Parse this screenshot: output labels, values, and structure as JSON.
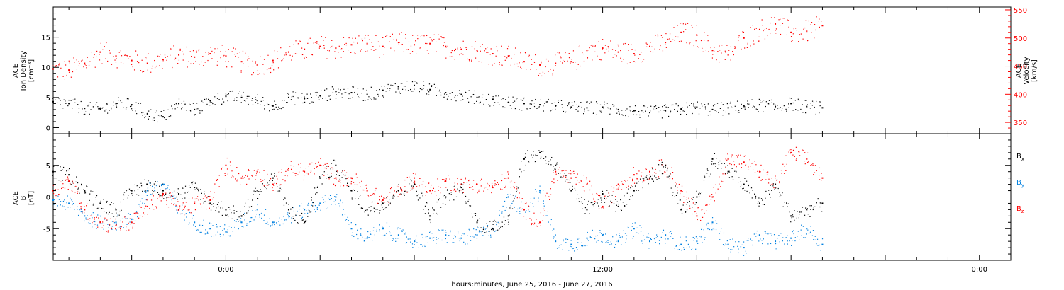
{
  "colors": {
    "frame": "#000000",
    "density": "#000000",
    "velocity": "#ff0000",
    "bx": "#000000",
    "by": "#0080e0",
    "bz": "#ff0000"
  },
  "x_axis": {
    "label": "hours:minutes, June 25, 2016 - June 27, 2016",
    "tick_labels": [
      "0:00",
      "12:00",
      "0:00"
    ],
    "tick_hours": [
      0,
      12,
      24
    ],
    "range_hours": [
      -5.5,
      25
    ]
  },
  "chart_data": [
    {
      "type": "scatter",
      "panel": "top",
      "ylabel_lines": [
        "ACE",
        "Ion Density",
        "[cm⁻³]"
      ],
      "ylim": [
        -1,
        20
      ],
      "yticks": [
        "0",
        "5",
        "10",
        "15"
      ],
      "right_axis": {
        "ylabel_lines": [
          "ACE",
          "Velocity",
          "[km/s]"
        ],
        "ylim": [
          330,
          555
        ],
        "yticks": [
          "350",
          "400",
          "450",
          "500",
          "550"
        ]
      },
      "series": [
        {
          "key": "density",
          "axis": "left",
          "x_hours": [
            -5.5,
            -5.0,
            -4.5,
            -4.0,
            -3.5,
            -3.0,
            -2.5,
            -2.0,
            -1.5,
            -1.0,
            -0.5,
            0.0,
            0.5,
            1.0,
            1.5,
            2.0,
            2.5,
            3.0,
            3.5,
            4.0,
            4.5,
            5.0,
            5.5,
            6.0,
            6.5,
            7.0,
            7.5,
            8.0,
            8.5,
            9.0,
            9.5,
            10.0,
            10.5,
            11.0,
            11.5,
            12.0,
            12.5,
            13.0,
            13.5,
            14.0,
            14.5,
            15.0,
            15.5,
            16.0,
            16.5,
            17.0,
            17.5,
            18.0,
            18.5,
            19.0
          ],
          "values": [
            4.3,
            4.0,
            3.2,
            3.1,
            4.0,
            3.8,
            2.3,
            1.8,
            4.0,
            3.0,
            4.5,
            5.2,
            5.0,
            4.5,
            3.6,
            5.0,
            4.8,
            5.3,
            6.0,
            5.8,
            5.5,
            6.2,
            6.8,
            7.0,
            6.3,
            5.8,
            5.5,
            5.0,
            4.7,
            4.2,
            4.0,
            3.8,
            3.6,
            3.4,
            3.3,
            3.4,
            3.0,
            2.8,
            2.5,
            2.8,
            3.1,
            3.4,
            3.0,
            3.3,
            3.6,
            3.8,
            3.5,
            4.0,
            3.5,
            3.3
          ]
        },
        {
          "key": "velocity",
          "axis": "right",
          "x_hours": [
            -5.5,
            -5.0,
            -4.5,
            -4.0,
            -3.5,
            -3.0,
            -2.5,
            -2.0,
            -1.5,
            -1.0,
            -0.5,
            0.0,
            0.5,
            1.0,
            1.5,
            2.0,
            2.5,
            3.0,
            3.5,
            4.0,
            4.5,
            5.0,
            5.5,
            6.0,
            6.5,
            7.0,
            7.5,
            8.0,
            8.5,
            9.0,
            9.5,
            10.0,
            10.5,
            11.0,
            11.5,
            12.0,
            12.5,
            13.0,
            13.5,
            14.0,
            14.5,
            15.0,
            15.5,
            16.0,
            16.5,
            17.0,
            17.5,
            18.0,
            18.5,
            19.0
          ],
          "values": [
            445,
            443,
            455,
            475,
            468,
            460,
            455,
            462,
            470,
            466,
            472,
            468,
            458,
            452,
            460,
            475,
            480,
            485,
            482,
            488,
            490,
            485,
            492,
            488,
            490,
            485,
            480,
            478,
            472,
            468,
            458,
            452,
            455,
            458,
            478,
            482,
            475,
            472,
            485,
            492,
            510,
            505,
            478,
            470,
            500,
            515,
            525,
            510,
            512,
            522
          ]
        }
      ]
    },
    {
      "type": "scatter",
      "panel": "bottom",
      "ylabel_lines": [
        "ACE",
        "B",
        "[nT]"
      ],
      "ylim": [
        -10,
        10
      ],
      "yticks": [
        "-5",
        "0",
        "5"
      ],
      "legend_position": "right",
      "series": [
        {
          "key": "bx",
          "name": "Bx",
          "x_hours": [
            -5.5,
            -5.0,
            -4.5,
            -4.0,
            -3.5,
            -3.0,
            -2.5,
            -2.0,
            -1.5,
            -1.0,
            -0.5,
            0.0,
            0.5,
            1.0,
            1.5,
            2.0,
            2.5,
            3.0,
            3.5,
            4.0,
            4.5,
            5.0,
            5.5,
            6.0,
            6.5,
            7.0,
            7.5,
            8.0,
            8.5,
            9.0,
            9.5,
            10.0,
            10.5,
            11.0,
            11.5,
            12.0,
            12.5,
            13.0,
            13.5,
            14.0,
            14.5,
            15.0,
            15.5,
            16.0,
            16.5,
            17.0,
            17.5,
            18.0,
            18.5,
            19.0
          ],
          "values": [
            4.0,
            3.5,
            1.0,
            -1.0,
            -2.0,
            1.0,
            2.0,
            1.0,
            0.5,
            1.5,
            -1.0,
            -2.0,
            -3.0,
            1.0,
            3.0,
            -2.0,
            -4.0,
            3.0,
            5.0,
            1.0,
            -2.0,
            -1.0,
            1.0,
            2.0,
            -3.0,
            0.0,
            1.5,
            -4.0,
            -5.0,
            -3.0,
            6.0,
            7.0,
            5.0,
            1.0,
            -2.0,
            0.5,
            -1.5,
            1.0,
            3.0,
            5.0,
            -2.0,
            0.0,
            6.0,
            4.0,
            2.0,
            -1.0,
            2.0,
            -3.0,
            -2.0,
            -1.0
          ]
        },
        {
          "key": "by",
          "name": "By",
          "x_hours": [
            -5.5,
            -5.0,
            -4.5,
            -4.0,
            -3.5,
            -3.0,
            -2.5,
            -2.0,
            -1.5,
            -1.0,
            -0.5,
            0.0,
            0.5,
            1.0,
            1.5,
            2.0,
            2.5,
            3.0,
            3.5,
            4.0,
            4.5,
            5.0,
            5.5,
            6.0,
            6.5,
            7.0,
            7.5,
            8.0,
            8.5,
            9.0,
            9.5,
            10.0,
            10.5,
            11.0,
            11.5,
            12.0,
            12.5,
            13.0,
            13.5,
            14.0,
            14.5,
            15.0,
            15.5,
            16.0,
            16.5,
            17.0,
            17.5,
            18.0,
            18.5,
            19.0
          ],
          "values": [
            -0.5,
            -1.0,
            -3.0,
            -4.0,
            -4.0,
            -3.5,
            1.0,
            2.0,
            -2.0,
            -4.0,
            -5.0,
            -5.5,
            -4.0,
            -2.0,
            -4.0,
            -3.0,
            -2.0,
            -1.0,
            0.0,
            -5.0,
            -6.5,
            -5.0,
            -6.0,
            -7.0,
            -6.5,
            -6.0,
            -6.5,
            -6.0,
            -5.0,
            0.0,
            -2.0,
            1.0,
            -7.0,
            -7.5,
            -6.5,
            -6.0,
            -7.0,
            -5.0,
            -7.0,
            -6.0,
            -7.5,
            -7.0,
            -4.0,
            -7.5,
            -8.0,
            -6.0,
            -7.0,
            -6.5,
            -5.0,
            -7.5
          ]
        },
        {
          "key": "bz",
          "name": "Bz",
          "x_hours": [
            -5.5,
            -5.0,
            -4.5,
            -4.0,
            -3.5,
            -3.0,
            -2.5,
            -2.0,
            -1.5,
            -1.0,
            -0.5,
            0.0,
            0.5,
            1.0,
            1.5,
            2.0,
            2.5,
            3.0,
            3.5,
            4.0,
            4.5,
            5.0,
            5.5,
            6.0,
            6.5,
            7.0,
            7.5,
            8.0,
            8.5,
            9.0,
            9.5,
            10.0,
            10.5,
            11.0,
            11.5,
            12.0,
            12.5,
            13.0,
            13.5,
            14.0,
            14.5,
            15.0,
            15.5,
            16.0,
            16.5,
            17.0,
            17.5,
            18.0,
            18.5,
            19.0
          ],
          "values": [
            1.0,
            2.5,
            -2.0,
            -4.0,
            -4.5,
            -4.0,
            -1.5,
            0.5,
            -2.0,
            -1.0,
            -0.5,
            5.0,
            3.0,
            4.0,
            2.0,
            4.5,
            4.0,
            5.0,
            3.0,
            3.0,
            1.0,
            -0.5,
            1.0,
            3.0,
            1.0,
            2.5,
            2.0,
            2.0,
            1.5,
            3.0,
            -2.0,
            -4.0,
            4.0,
            3.0,
            2.0,
            -1.5,
            2.0,
            3.5,
            4.0,
            5.0,
            1.0,
            -3.0,
            0.0,
            6.0,
            5.5,
            4.0,
            2.0,
            7.0,
            6.0,
            3.0
          ]
        }
      ]
    }
  ]
}
